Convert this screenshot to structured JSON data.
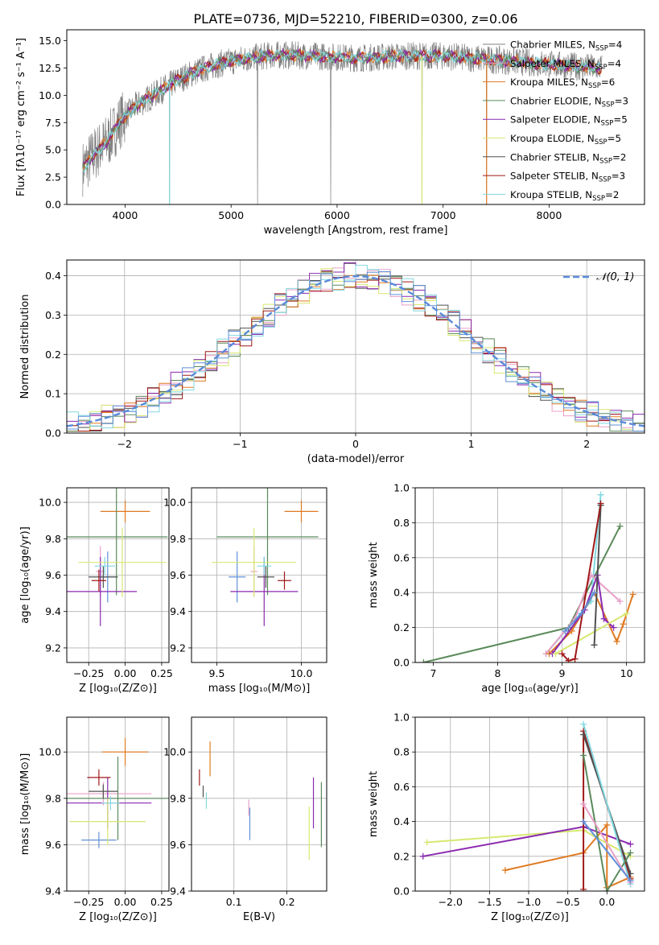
{
  "title": "PLATE=0736, MJD=52210, FIBERID=0300, z=0.06",
  "palette": [
    "#808080",
    "#e8a0c8",
    "#e07a22",
    "#5a8a5a",
    "#8a2ab0",
    "#d8e870",
    "#505050",
    "#a01818",
    "#80d8e0",
    "#6090d8"
  ],
  "chart_data": [
    {
      "id": "spectrum",
      "type": "line",
      "xlabel": "wavelength [Angstrom, rest frame]",
      "ylabel": "Flux [fλ10⁻¹⁷ erg cm⁻² s⁻¹ A⁻¹]",
      "xlim": [
        3450,
        8900
      ],
      "ylim": [
        0,
        16
      ],
      "xticks": [
        "4000",
        "5000",
        "6000",
        "7000",
        "8000"
      ],
      "yticks": [
        "0.0",
        "2.5",
        "5.0",
        "7.5",
        "10.0",
        "12.5",
        "15.0"
      ],
      "grid": false,
      "legend_position": "top-right",
      "continuum_knots": [
        [
          3600,
          3.3
        ],
        [
          3700,
          4.5
        ],
        [
          3850,
          6.0
        ],
        [
          3950,
          7.6
        ],
        [
          4100,
          9.0
        ],
        [
          4300,
          10.2
        ],
        [
          4500,
          11.4
        ],
        [
          4700,
          12.3
        ],
        [
          4900,
          12.9
        ],
        [
          5100,
          13.3
        ],
        [
          5400,
          13.7
        ],
        [
          5800,
          13.6
        ],
        [
          6200,
          13.4
        ],
        [
          6600,
          13.6
        ],
        [
          7000,
          13.6
        ],
        [
          7400,
          13.3
        ],
        [
          7800,
          13.0
        ],
        [
          8300,
          12.6
        ],
        [
          8500,
          12.5
        ]
      ],
      "series": [
        {
          "name": "Chabrier MILES, N",
          "sub": "SSP",
          "count": "=4"
        },
        {
          "name": "Salpeter MILES, N",
          "sub": "SSP",
          "count": "=4"
        },
        {
          "name": "Kroupa MILES, N",
          "sub": "SSP",
          "count": "=6"
        },
        {
          "name": "Chabrier ELODIE, N",
          "sub": "SSP",
          "count": "=3"
        },
        {
          "name": "Salpeter ELODIE, N",
          "sub": "SSP",
          "count": "=5"
        },
        {
          "name": "Kroupa ELODIE, N",
          "sub": "SSP",
          "count": "=5"
        },
        {
          "name": "Chabrier STELIB, N",
          "sub": "SSP",
          "count": "=2"
        },
        {
          "name": "Salpeter STELIB, N",
          "sub": "SSP",
          "count": "=3"
        },
        {
          "name": "Kroupa STELIB, N",
          "sub": "SSP",
          "count": "=2"
        }
      ]
    },
    {
      "id": "residuals",
      "type": "line",
      "xlabel": "(data-model)/error",
      "ylabel": "Normed distribution",
      "xlim": [
        -2.5,
        2.5
      ],
      "ylim": [
        0,
        0.44
      ],
      "xticks": [
        "−2",
        "−1",
        "0",
        "1",
        "2"
      ],
      "yticks": [
        "0.0",
        "0.1",
        "0.2",
        "0.3",
        "0.4"
      ],
      "grid": true,
      "legend": "𝒩(0, 1)",
      "legend_position": "top-right",
      "bin_width": 0.1,
      "description": "step histograms of residuals for 9 model fits plus dashed normal curve"
    },
    {
      "id": "age_vs_Z",
      "type": "scatter",
      "xlabel": "Z [log₁₀(Z/Z⊙)]",
      "ylabel": "age  [log₁₀(age/yr)]",
      "xlim": [
        -0.4,
        0.3
      ],
      "ylim": [
        9.12,
        10.08
      ],
      "xticks": [
        "−0.25",
        "0.00",
        "0.25"
      ],
      "yticks": [
        "9.2",
        "9.4",
        "9.6",
        "9.8",
        "10.0"
      ],
      "grid": true,
      "points": [
        {
          "x": -0.12,
          "y": 9.59,
          "xerr": 0.06,
          "yerr": 0.28,
          "c": 9
        },
        {
          "x": -0.17,
          "y": 9.62,
          "xerr": 0.03,
          "yerr": 0.28,
          "c": 1
        },
        {
          "x": 0.0,
          "y": 9.95,
          "xerr": 0.17,
          "yerr": 0.12,
          "c": 2
        },
        {
          "x": -0.06,
          "y": 9.81,
          "xerr": 0.35,
          "yerr": 0.64,
          "c": 3
        },
        {
          "x": -0.17,
          "y": 9.51,
          "xerr": 0.25,
          "yerr": 0.38,
          "c": 4
        },
        {
          "x": -0.02,
          "y": 9.67,
          "xerr": 0.3,
          "yerr": 0.38,
          "c": 5
        },
        {
          "x": -0.15,
          "y": 9.59,
          "xerr": 0.1,
          "yerr": 0.12,
          "c": 6
        },
        {
          "x": -0.18,
          "y": 9.57,
          "xerr": 0.05,
          "yerr": 0.12,
          "c": 7
        },
        {
          "x": -0.14,
          "y": 9.65,
          "xerr": 0.07,
          "yerr": 0.1,
          "c": 8
        }
      ]
    },
    {
      "id": "age_vs_mass",
      "type": "scatter",
      "xlabel": "mass [log₁₀(M/M⊙)]",
      "ylabel": "",
      "xlim": [
        9.35,
        10.15
      ],
      "ylim": [
        9.12,
        10.08
      ],
      "xticks": [
        "9.5",
        "10.0"
      ],
      "yticks": [
        "9.2",
        "9.4",
        "9.6",
        "9.8",
        "10.0"
      ],
      "grid": true,
      "points": [
        {
          "x": 9.62,
          "y": 9.59,
          "xerr": 0.05,
          "yerr": 0.28,
          "c": 9
        },
        {
          "x": 9.72,
          "y": 9.62,
          "xerr": 0.02,
          "yerr": 0.28,
          "c": 1
        },
        {
          "x": 10.0,
          "y": 9.95,
          "xerr": 0.1,
          "yerr": 0.12,
          "c": 2
        },
        {
          "x": 9.8,
          "y": 9.81,
          "xerr": 0.3,
          "yerr": 0.64,
          "c": 3
        },
        {
          "x": 9.78,
          "y": 9.51,
          "xerr": 0.2,
          "yerr": 0.38,
          "c": 4
        },
        {
          "x": 9.72,
          "y": 9.67,
          "xerr": 0.25,
          "yerr": 0.38,
          "c": 5
        },
        {
          "x": 9.79,
          "y": 9.59,
          "xerr": 0.05,
          "yerr": 0.12,
          "c": 6
        },
        {
          "x": 9.9,
          "y": 9.57,
          "xerr": 0.04,
          "yerr": 0.1,
          "c": 7
        },
        {
          "x": 9.78,
          "y": 9.65,
          "xerr": 0.04,
          "yerr": 0.1,
          "c": 8
        }
      ]
    },
    {
      "id": "mass_weight_vs_age",
      "type": "line",
      "xlabel": "age  [log₁₀(age/yr)]",
      "ylabel": "mass weight",
      "xlim": [
        6.72,
        10.28
      ],
      "ylim": [
        0,
        1.0
      ],
      "xticks": [
        "7",
        "8",
        "9",
        "10"
      ],
      "yticks": [
        "0.0",
        "0.2",
        "0.4",
        "0.6",
        "0.8",
        "1.0"
      ],
      "grid": true,
      "series": [
        {
          "c": 3,
          "points": [
            [
              6.85,
              0.0
            ],
            [
              9.1,
              0.2
            ],
            [
              9.9,
              0.78
            ]
          ]
        },
        {
          "c": 8,
          "points": [
            [
              8.75,
              0.05
            ],
            [
              9.45,
              0.35
            ],
            [
              9.6,
              0.96
            ]
          ]
        },
        {
          "c": 1,
          "points": [
            [
              8.75,
              0.05
            ],
            [
              9.2,
              0.25
            ],
            [
              9.45,
              0.5
            ],
            [
              9.9,
              0.35
            ]
          ]
        },
        {
          "c": 2,
          "points": [
            [
              8.8,
              0.05
            ],
            [
              9.15,
              0.18
            ],
            [
              9.5,
              0.4
            ],
            [
              9.85,
              0.12
            ],
            [
              9.95,
              0.22
            ],
            [
              10.1,
              0.39
            ]
          ]
        },
        {
          "c": 4,
          "points": [
            [
              8.85,
              0.05
            ],
            [
              9.35,
              0.3
            ],
            [
              9.55,
              0.5
            ],
            [
              9.65,
              0.25
            ],
            [
              9.8,
              0.2
            ]
          ]
        },
        {
          "c": 5,
          "points": [
            [
              8.9,
              0.05
            ],
            [
              10.0,
              0.28
            ]
          ]
        },
        {
          "c": 6,
          "points": [
            [
              9.5,
              0.1
            ],
            [
              9.6,
              0.9
            ]
          ]
        },
        {
          "c": 7,
          "points": [
            [
              9.0,
              0.05
            ],
            [
              9.1,
              0.01
            ],
            [
              9.2,
              0.02
            ],
            [
              9.6,
              0.91
            ]
          ]
        },
        {
          "c": 9,
          "points": [
            [
              9.05,
              0.18
            ],
            [
              9.3,
              0.28
            ],
            [
              9.5,
              0.4
            ]
          ]
        }
      ]
    },
    {
      "id": "mass_vs_Z",
      "type": "scatter",
      "xlabel": "Z [log₁₀(Z/Z⊙)]",
      "ylabel": "mass [log₁₀(M/M⊙)]",
      "xlim": [
        -0.4,
        0.3
      ],
      "ylim": [
        9.4,
        10.15
      ],
      "xticks": [
        "−0.25",
        "0.00",
        "0.25"
      ],
      "yticks": [
        "9.4",
        "9.6",
        "9.8",
        "10.0"
      ],
      "grid": true,
      "points": [
        {
          "x": -0.18,
          "y": 9.62,
          "xerr": 0.12,
          "yerr": 0.07,
          "c": 9
        },
        {
          "x": -0.15,
          "y": 9.82,
          "xerr": 0.33,
          "yerr": 0.1,
          "c": 1
        },
        {
          "x": 0.0,
          "y": 10.0,
          "xerr": 0.16,
          "yerr": 0.12,
          "c": 2
        },
        {
          "x": -0.05,
          "y": 9.8,
          "xerr": 0.35,
          "yerr": 0.36,
          "c": 3
        },
        {
          "x": -0.12,
          "y": 9.78,
          "xerr": 0.3,
          "yerr": 0.22,
          "c": 4
        },
        {
          "x": -0.12,
          "y": 9.7,
          "xerr": 0.26,
          "yerr": 0.2,
          "c": 5
        },
        {
          "x": -0.15,
          "y": 9.83,
          "xerr": 0.1,
          "yerr": 0.06,
          "c": 6
        },
        {
          "x": -0.18,
          "y": 9.89,
          "xerr": 0.08,
          "yerr": 0.07,
          "c": 7
        },
        {
          "x": -0.1,
          "y": 9.78,
          "xerr": 0.06,
          "yerr": 0.06,
          "c": 8
        }
      ]
    },
    {
      "id": "mass_vs_ebv",
      "type": "scatter",
      "xlabel": "E(B-V)",
      "ylabel": "",
      "xlim": [
        0.02,
        0.275
      ],
      "ylim": [
        9.4,
        10.15
      ],
      "xticks": [
        "0.1",
        "0.2"
      ],
      "yticks": [
        "9.4",
        "9.6",
        "9.8",
        "10.0"
      ],
      "grid": true,
      "points": [
        {
          "x": 0.13,
          "y": 9.69,
          "yerr": 0.14,
          "c": 9
        },
        {
          "x": 0.128,
          "y": 9.76,
          "yerr": 0.07,
          "c": 1
        },
        {
          "x": 0.055,
          "y": 9.97,
          "yerr": 0.15,
          "c": 2
        },
        {
          "x": 0.265,
          "y": 9.73,
          "yerr": 0.28,
          "c": 3
        },
        {
          "x": 0.25,
          "y": 9.78,
          "yerr": 0.22,
          "c": 4
        },
        {
          "x": 0.242,
          "y": 9.65,
          "yerr": 0.23,
          "c": 5
        },
        {
          "x": 0.042,
          "y": 9.83,
          "yerr": 0.05,
          "c": 6
        },
        {
          "x": 0.035,
          "y": 9.89,
          "yerr": 0.07,
          "c": 7
        },
        {
          "x": 0.048,
          "y": 9.79,
          "yerr": 0.07,
          "c": 8
        }
      ]
    },
    {
      "id": "mass_weight_vs_Z",
      "type": "line",
      "xlabel": "Z [log₁₀(Z/Z⊙)]",
      "ylabel": "mass weight",
      "xlim": [
        -2.45,
        0.48
      ],
      "ylim": [
        0,
        1.0
      ],
      "xticks": [
        "−2.0",
        "−1.5",
        "−1.0",
        "−0.5",
        "0.0"
      ],
      "yticks": [
        "0.0",
        "0.2",
        "0.4",
        "0.6",
        "0.8",
        "1.0"
      ],
      "grid": true,
      "series": [
        {
          "c": 5,
          "points": [
            [
              -2.3,
              0.28
            ],
            [
              -0.3,
              0.35
            ],
            [
              0.3,
              0.2
            ]
          ]
        },
        {
          "c": 4,
          "points": [
            [
              -2.35,
              0.2
            ],
            [
              -0.3,
              0.37
            ],
            [
              0.3,
              0.27
            ]
          ]
        },
        {
          "c": 2,
          "points": [
            [
              -1.3,
              0.12
            ],
            [
              -0.3,
              0.22
            ],
            [
              0.0,
              0.38
            ],
            [
              0.0,
              0.02
            ],
            [
              0.3,
              0.08
            ]
          ]
        },
        {
          "c": 7,
          "points": [
            [
              -0.3,
              0.01
            ],
            [
              -0.3,
              0.92
            ],
            [
              0.3,
              0.07
            ]
          ]
        },
        {
          "c": 6,
          "points": [
            [
              -0.3,
              0.9
            ],
            [
              0.3,
              0.1
            ]
          ]
        },
        {
          "c": 8,
          "points": [
            [
              -0.3,
              0.96
            ],
            [
              0.3,
              0.04
            ]
          ]
        },
        {
          "c": 3,
          "points": [
            [
              -0.3,
              0.78
            ],
            [
              0.0,
              0.0
            ],
            [
              0.3,
              0.22
            ]
          ]
        },
        {
          "c": 1,
          "points": [
            [
              -0.3,
              0.5
            ],
            [
              0.3,
              0.05
            ]
          ]
        },
        {
          "c": 9,
          "points": [
            [
              -0.3,
              0.4
            ],
            [
              0.3,
              0.06
            ]
          ]
        }
      ]
    }
  ]
}
